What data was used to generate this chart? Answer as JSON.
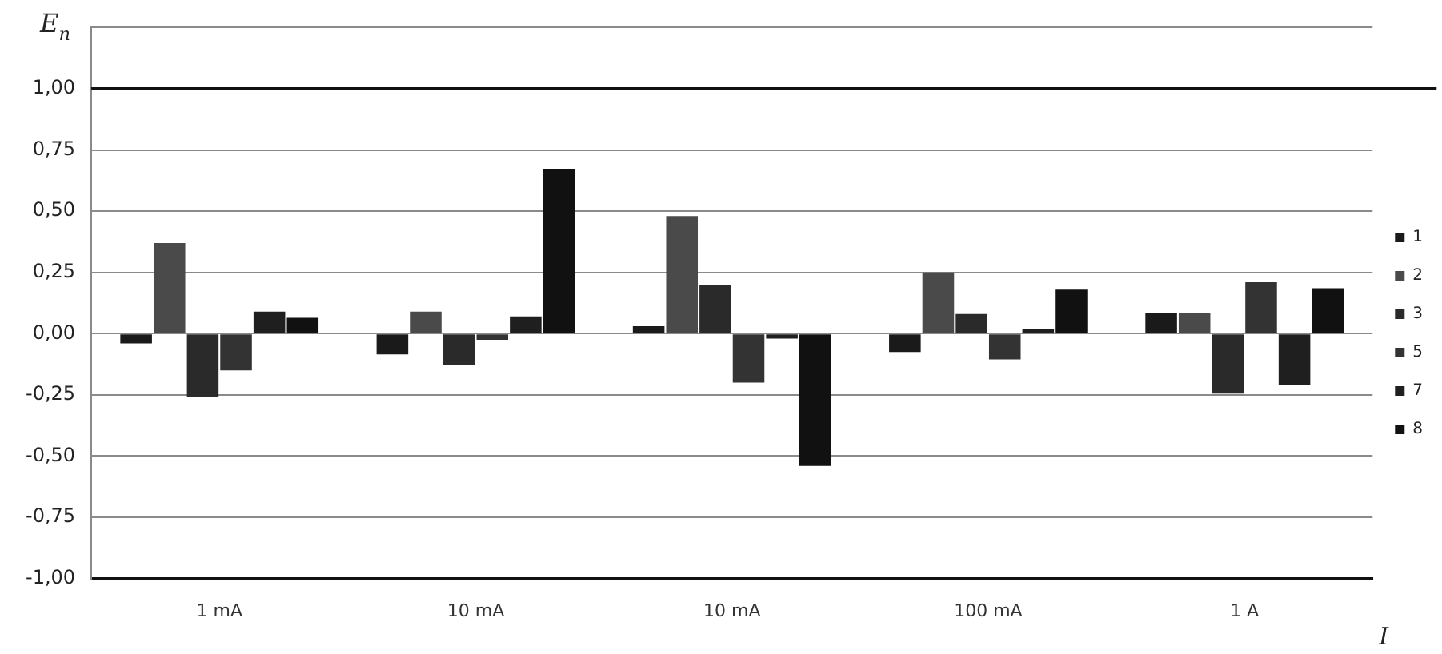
{
  "chart_data": {
    "type": "bar",
    "categories": [
      "1 mA",
      "10 mA",
      "10 mA",
      "100 mA",
      "1 A"
    ],
    "series": [
      {
        "name": "1",
        "color": "#1a1a1a",
        "values": [
          -0.04,
          -0.085,
          0.03,
          -0.075,
          0.085
        ]
      },
      {
        "name": "2",
        "color": "#4a4a4a",
        "values": [
          0.37,
          0.09,
          0.48,
          0.25,
          0.085
        ]
      },
      {
        "name": "3",
        "color": "#2a2a2a",
        "values": [
          -0.26,
          -0.13,
          0.2,
          0.08,
          -0.245
        ]
      },
      {
        "name": "5",
        "color": "#333333",
        "values": [
          -0.15,
          -0.025,
          -0.2,
          -0.105,
          0.21
        ]
      },
      {
        "name": "7",
        "color": "#1f1f1f",
        "values": [
          0.09,
          0.07,
          -0.02,
          0.02,
          -0.21
        ]
      },
      {
        "name": "8",
        "color": "#111111",
        "values": [
          0.065,
          0.67,
          -0.54,
          0.18,
          0.185
        ]
      }
    ],
    "ylim": [
      -1,
      1.25
    ],
    "yticks": [
      {
        "value": -1,
        "label": "-1,00"
      },
      {
        "value": -0.75,
        "label": "-0,75"
      },
      {
        "value": -0.5,
        "label": "-0,50"
      },
      {
        "value": -0.25,
        "label": "-0,25"
      },
      {
        "value": 0,
        "label": "0,00"
      },
      {
        "value": 0.25,
        "label": "0,25"
      },
      {
        "value": 0.5,
        "label": "0,50"
      },
      {
        "value": 0.75,
        "label": "0,75"
      },
      {
        "value": 1,
        "label": "1,00"
      },
      {
        "value": 1.25,
        "label": null
      }
    ],
    "ref_lines": [
      {
        "axis": "y",
        "value": 1,
        "color": "#111111"
      }
    ],
    "xlabel": "I",
    "ylabel": "E$_{n}$",
    "grid": "y",
    "legend": "right"
  }
}
